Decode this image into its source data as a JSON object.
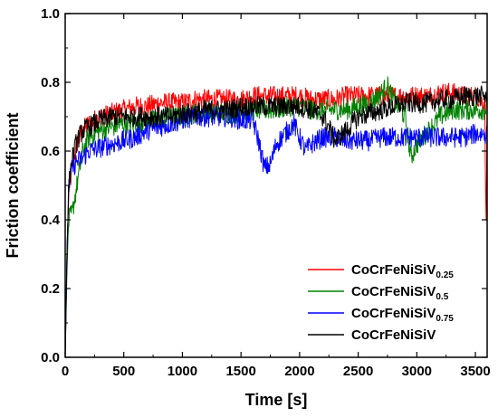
{
  "chart_data": {
    "type": "line",
    "xlabel": "Time [s]",
    "ylabel": "Friction coefficient",
    "xlim": [
      0,
      3600
    ],
    "ylim": [
      0.0,
      1.0
    ],
    "x_ticks": [
      0,
      500,
      1000,
      1500,
      2000,
      2500,
      3000,
      3500
    ],
    "y_ticks": [
      0.0,
      0.2,
      0.4,
      0.6,
      0.8,
      1.0
    ],
    "x_tick_labels": [
      "0",
      "500",
      "1000",
      "1500",
      "2000",
      "2500",
      "3000",
      "3500"
    ],
    "y_tick_labels": [
      "0.0",
      "0.2",
      "0.4",
      "0.6",
      "0.8",
      "1.0"
    ],
    "grid": false,
    "legend_position": "bottom-right",
    "series": [
      {
        "name": "CoCrFeNiSiV0.25",
        "label_main": "CoCrFeNiSiV",
        "label_sub": "0.25",
        "color": "#ff0000",
        "points": [
          [
            0,
            0.0
          ],
          [
            15,
            0.3
          ],
          [
            30,
            0.48
          ],
          [
            60,
            0.55
          ],
          [
            100,
            0.62
          ],
          [
            150,
            0.66
          ],
          [
            200,
            0.68
          ],
          [
            300,
            0.7
          ],
          [
            400,
            0.71
          ],
          [
            500,
            0.72
          ],
          [
            600,
            0.73
          ],
          [
            700,
            0.73
          ],
          [
            800,
            0.74
          ],
          [
            900,
            0.74
          ],
          [
            1000,
            0.74
          ],
          [
            1100,
            0.75
          ],
          [
            1200,
            0.75
          ],
          [
            1300,
            0.75
          ],
          [
            1400,
            0.75
          ],
          [
            1500,
            0.75
          ],
          [
            1600,
            0.76
          ],
          [
            1700,
            0.76
          ],
          [
            1800,
            0.76
          ],
          [
            1900,
            0.76
          ],
          [
            2000,
            0.76
          ],
          [
            2100,
            0.75
          ],
          [
            2200,
            0.75
          ],
          [
            2300,
            0.75
          ],
          [
            2400,
            0.76
          ],
          [
            2500,
            0.76
          ],
          [
            2600,
            0.76
          ],
          [
            2700,
            0.76
          ],
          [
            2800,
            0.76
          ],
          [
            2900,
            0.76
          ],
          [
            3000,
            0.76
          ],
          [
            3100,
            0.76
          ],
          [
            3200,
            0.77
          ],
          [
            3300,
            0.77
          ],
          [
            3400,
            0.76
          ],
          [
            3500,
            0.76
          ],
          [
            3580,
            0.74
          ],
          [
            3590,
            0.36
          ],
          [
            3600,
            0.7
          ]
        ]
      },
      {
        "name": "CoCrFeNiSiV0.5",
        "label_main": "CoCrFeNiSiV",
        "label_sub": "0.5",
        "color": "#008000",
        "points": [
          [
            0,
            0.0
          ],
          [
            15,
            0.25
          ],
          [
            30,
            0.4
          ],
          [
            60,
            0.42
          ],
          [
            100,
            0.5
          ],
          [
            150,
            0.6
          ],
          [
            200,
            0.64
          ],
          [
            300,
            0.66
          ],
          [
            400,
            0.67
          ],
          [
            500,
            0.68
          ],
          [
            600,
            0.68
          ],
          [
            700,
            0.69
          ],
          [
            800,
            0.69
          ],
          [
            900,
            0.7
          ],
          [
            1000,
            0.7
          ],
          [
            1100,
            0.71
          ],
          [
            1200,
            0.71
          ],
          [
            1300,
            0.71
          ],
          [
            1400,
            0.71
          ],
          [
            1500,
            0.71
          ],
          [
            1600,
            0.72
          ],
          [
            1700,
            0.72
          ],
          [
            1800,
            0.72
          ],
          [
            1900,
            0.73
          ],
          [
            2000,
            0.73
          ],
          [
            2100,
            0.72
          ],
          [
            2200,
            0.72
          ],
          [
            2300,
            0.72
          ],
          [
            2400,
            0.72
          ],
          [
            2500,
            0.73
          ],
          [
            2600,
            0.74
          ],
          [
            2700,
            0.77
          ],
          [
            2750,
            0.79
          ],
          [
            2800,
            0.75
          ],
          [
            2900,
            0.7
          ],
          [
            2950,
            0.58
          ],
          [
            3000,
            0.62
          ],
          [
            3100,
            0.66
          ],
          [
            3200,
            0.7
          ],
          [
            3300,
            0.72
          ],
          [
            3400,
            0.72
          ],
          [
            3500,
            0.72
          ],
          [
            3600,
            0.72
          ]
        ]
      },
      {
        "name": "CoCrFeNiSiV0.75",
        "label_main": "CoCrFeNiSiV",
        "label_sub": "0.75",
        "color": "#0000ff",
        "points": [
          [
            0,
            0.0
          ],
          [
            15,
            0.3
          ],
          [
            30,
            0.5
          ],
          [
            60,
            0.55
          ],
          [
            100,
            0.57
          ],
          [
            150,
            0.58
          ],
          [
            200,
            0.6
          ],
          [
            300,
            0.61
          ],
          [
            400,
            0.62
          ],
          [
            500,
            0.63
          ],
          [
            600,
            0.64
          ],
          [
            700,
            0.66
          ],
          [
            800,
            0.67
          ],
          [
            900,
            0.68
          ],
          [
            1000,
            0.69
          ],
          [
            1100,
            0.7
          ],
          [
            1200,
            0.7
          ],
          [
            1300,
            0.7
          ],
          [
            1400,
            0.7
          ],
          [
            1500,
            0.69
          ],
          [
            1600,
            0.69
          ],
          [
            1650,
            0.63
          ],
          [
            1700,
            0.55
          ],
          [
            1750,
            0.56
          ],
          [
            1800,
            0.62
          ],
          [
            1900,
            0.66
          ],
          [
            1950,
            0.68
          ],
          [
            2000,
            0.64
          ],
          [
            2050,
            0.6
          ],
          [
            2100,
            0.62
          ],
          [
            2200,
            0.64
          ],
          [
            2300,
            0.64
          ],
          [
            2400,
            0.63
          ],
          [
            2500,
            0.63
          ],
          [
            2600,
            0.63
          ],
          [
            2700,
            0.64
          ],
          [
            2800,
            0.64
          ],
          [
            2900,
            0.64
          ],
          [
            3000,
            0.64
          ],
          [
            3100,
            0.64
          ],
          [
            3200,
            0.64
          ],
          [
            3300,
            0.64
          ],
          [
            3400,
            0.64
          ],
          [
            3500,
            0.65
          ],
          [
            3600,
            0.65
          ]
        ]
      },
      {
        "name": "CoCrFeNiSiV",
        "label_main": "CoCrFeNiSiV",
        "label_sub": "",
        "color": "#000000",
        "points": [
          [
            0,
            0.0
          ],
          [
            15,
            0.3
          ],
          [
            30,
            0.5
          ],
          [
            60,
            0.58
          ],
          [
            100,
            0.63
          ],
          [
            150,
            0.66
          ],
          [
            200,
            0.67
          ],
          [
            300,
            0.69
          ],
          [
            400,
            0.7
          ],
          [
            500,
            0.7
          ],
          [
            600,
            0.7
          ],
          [
            700,
            0.7
          ],
          [
            800,
            0.7
          ],
          [
            900,
            0.7
          ],
          [
            1000,
            0.71
          ],
          [
            1100,
            0.71
          ],
          [
            1200,
            0.72
          ],
          [
            1300,
            0.72
          ],
          [
            1400,
            0.72
          ],
          [
            1500,
            0.73
          ],
          [
            1600,
            0.73
          ],
          [
            1700,
            0.73
          ],
          [
            1800,
            0.73
          ],
          [
            1900,
            0.73
          ],
          [
            2000,
            0.73
          ],
          [
            2100,
            0.72
          ],
          [
            2200,
            0.7
          ],
          [
            2250,
            0.67
          ],
          [
            2300,
            0.63
          ],
          [
            2400,
            0.66
          ],
          [
            2500,
            0.7
          ],
          [
            2600,
            0.71
          ],
          [
            2700,
            0.72
          ],
          [
            2800,
            0.73
          ],
          [
            2900,
            0.74
          ],
          [
            3000,
            0.74
          ],
          [
            3100,
            0.74
          ],
          [
            3200,
            0.75
          ],
          [
            3300,
            0.75
          ],
          [
            3400,
            0.76
          ],
          [
            3500,
            0.76
          ],
          [
            3600,
            0.76
          ]
        ]
      }
    ]
  }
}
